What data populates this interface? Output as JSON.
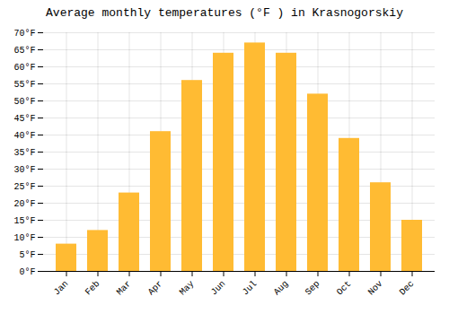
{
  "chart_data": {
    "type": "bar",
    "title": "Average monthly temperatures (°F ) in Krasnogorskiy",
    "categories": [
      "Jan",
      "Feb",
      "Mar",
      "Apr",
      "May",
      "Jun",
      "Jul",
      "Aug",
      "Sep",
      "Oct",
      "Nov",
      "Dec"
    ],
    "values": [
      8,
      12,
      23,
      41,
      56,
      64,
      67,
      64,
      52,
      39,
      26,
      15
    ],
    "color": "#FFBB33",
    "ylim": [
      0,
      70
    ],
    "yticks": [
      {
        "value": 0,
        "label": "0°F"
      },
      {
        "value": 5,
        "label": "5°F"
      },
      {
        "value": 10,
        "label": "10°F"
      },
      {
        "value": 15,
        "label": "15°F"
      },
      {
        "value": 20,
        "label": "20°F"
      },
      {
        "value": 25,
        "label": "25°F"
      },
      {
        "value": 30,
        "label": "30°F"
      },
      {
        "value": 35,
        "label": "35°F"
      },
      {
        "value": 40,
        "label": "40°F"
      },
      {
        "value": 45,
        "label": "45°F"
      },
      {
        "value": 50,
        "label": "50°F"
      },
      {
        "value": 55,
        "label": "55°F"
      },
      {
        "value": 60,
        "label": "60°F"
      },
      {
        "value": 65,
        "label": "65°F"
      },
      {
        "value": 70,
        "label": "70°F"
      }
    ],
    "grid": true
  }
}
